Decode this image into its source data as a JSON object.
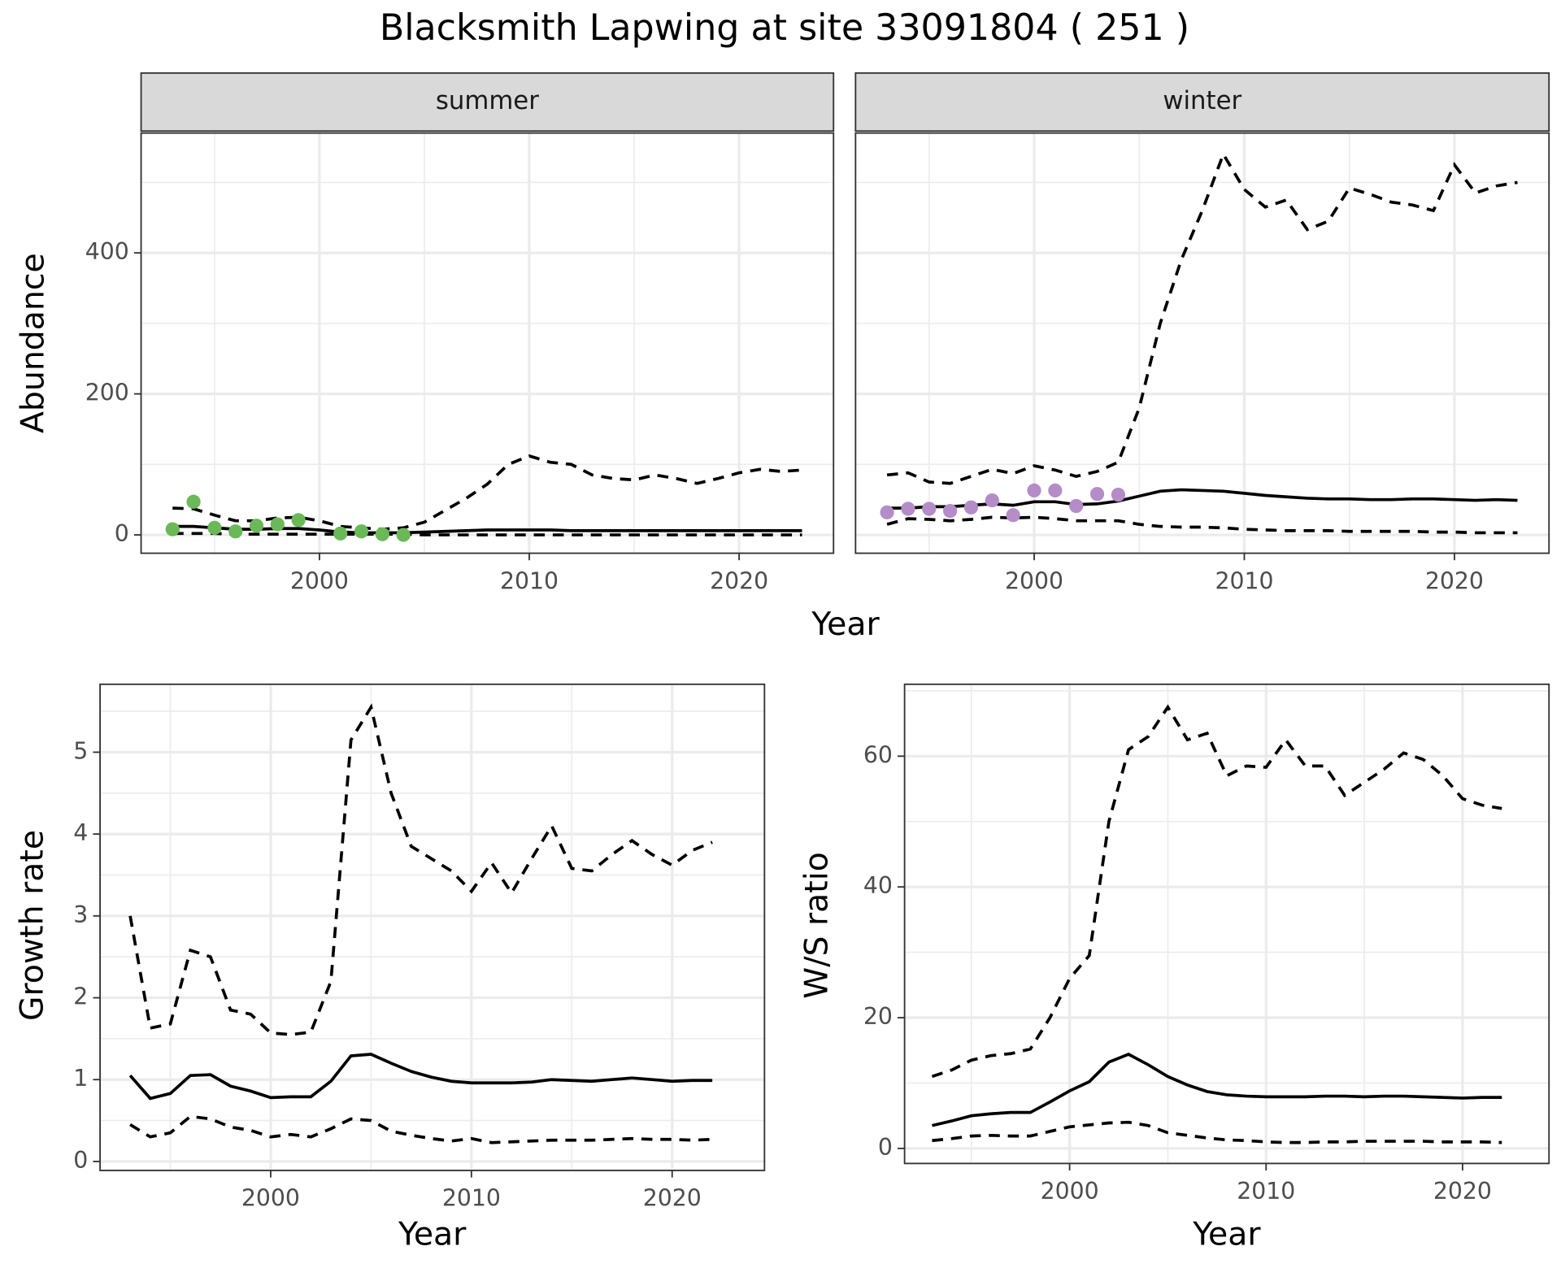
{
  "title": "Blacksmith Lapwing at site 33091804 ( 251 )",
  "chart_data": [
    {
      "type": "line",
      "facet": "summer",
      "ylabel": "Abundance",
      "xlabel": "Year",
      "x": [
        1993,
        1994,
        1995,
        1996,
        1997,
        1998,
        1999,
        2000,
        2001,
        2002,
        2003,
        2004,
        2005,
        2006,
        2007,
        2008,
        2009,
        2010,
        2011,
        2012,
        2013,
        2014,
        2015,
        2016,
        2017,
        2018,
        2019,
        2020,
        2021,
        2022,
        2023
      ],
      "series": [
        {
          "color": "#000000",
          "dashed": true,
          "values": [
            38,
            37,
            28,
            20,
            20,
            24,
            25,
            20,
            12,
            10,
            8,
            10,
            18,
            35,
            52,
            72,
            100,
            112,
            103,
            100,
            85,
            80,
            78,
            85,
            80,
            73,
            80,
            88,
            93,
            90,
            92
          ]
        },
        {
          "color": "#000000",
          "dashed": false,
          "values": [
            12,
            12,
            10,
            8,
            8,
            9,
            9,
            7,
            4,
            3,
            3,
            3,
            4,
            5,
            6,
            7,
            7,
            7,
            7,
            6,
            6,
            6,
            6,
            6,
            6,
            6,
            6,
            6,
            6,
            6,
            6
          ]
        },
        {
          "color": "#000000",
          "dashed": true,
          "values": [
            2,
            2,
            2,
            1,
            1,
            1,
            1,
            1,
            1,
            1,
            1,
            1,
            0,
            0,
            0,
            0,
            0,
            0,
            0,
            0,
            0,
            0,
            0,
            0,
            0,
            0,
            0,
            0,
            0,
            0,
            0
          ]
        }
      ],
      "points": {
        "color": "#6ab857",
        "x": [
          1993,
          1994,
          1995,
          1996,
          1997,
          1998,
          1999,
          2001,
          2002,
          2003,
          2004
        ],
        "values": [
          8,
          47,
          10,
          5,
          13,
          15,
          21,
          2,
          5,
          1,
          0
        ]
      },
      "xlim": [
        1991.5,
        2024.5
      ],
      "ylim": [
        -26,
        570
      ],
      "xticks": [
        2000,
        2010,
        2020
      ],
      "xminor": [
        1995,
        2005,
        2015
      ],
      "yticks": [
        0,
        200,
        400
      ],
      "yminor": [
        100,
        300,
        500
      ],
      "grid": true
    },
    {
      "type": "line",
      "facet": "winter",
      "x": [
        1993,
        1994,
        1995,
        1996,
        1997,
        1998,
        1999,
        2000,
        2001,
        2002,
        2003,
        2004,
        2005,
        2006,
        2007,
        2008,
        2009,
        2010,
        2011,
        2012,
        2013,
        2014,
        2015,
        2016,
        2017,
        2018,
        2019,
        2020,
        2021,
        2022,
        2023
      ],
      "series": [
        {
          "color": "#000000",
          "dashed": true,
          "values": [
            85,
            88,
            75,
            73,
            83,
            93,
            87,
            98,
            92,
            83,
            90,
            103,
            180,
            300,
            390,
            460,
            540,
            490,
            465,
            475,
            433,
            445,
            492,
            483,
            472,
            468,
            460,
            525,
            485,
            495,
            500
          ]
        },
        {
          "color": "#000000",
          "dashed": false,
          "values": [
            38,
            38,
            40,
            40,
            42,
            44,
            42,
            47,
            47,
            43,
            44,
            48,
            55,
            62,
            64,
            63,
            62,
            59,
            56,
            54,
            52,
            51,
            51,
            50,
            50,
            51,
            51,
            50,
            49,
            50,
            49
          ]
        },
        {
          "color": "#000000",
          "dashed": true,
          "values": [
            15,
            23,
            22,
            20,
            22,
            25,
            24,
            25,
            23,
            20,
            20,
            20,
            15,
            12,
            11,
            11,
            10,
            8,
            7,
            6,
            6,
            6,
            5,
            5,
            5,
            5,
            4,
            4,
            3,
            3,
            3
          ]
        }
      ],
      "points": {
        "color": "#b48cc8",
        "x": [
          1993,
          1994,
          1995,
          1996,
          1997,
          1998,
          1999,
          2000,
          2001,
          2002,
          2003,
          2004
        ],
        "values": [
          32,
          37,
          37,
          34,
          39,
          49,
          28,
          63,
          63,
          41,
          58,
          57
        ]
      },
      "xlim": [
        1991.5,
        2024.5
      ],
      "ylim": [
        -26,
        570
      ],
      "xticks": [
        2000,
        2010,
        2020
      ],
      "xminor": [
        1995,
        2005,
        2015
      ],
      "yminor": [
        100,
        300,
        500
      ],
      "yticks_shared": [
        0,
        200,
        400
      ],
      "grid": true
    },
    {
      "type": "line",
      "ylabel": "Growth rate",
      "xlabel": "Year",
      "x": [
        1993,
        1994,
        1995,
        1996,
        1997,
        1998,
        1999,
        2000,
        2001,
        2002,
        2003,
        2004,
        2005,
        2006,
        2007,
        2008,
        2009,
        2010,
        2011,
        2012,
        2013,
        2014,
        2015,
        2016,
        2017,
        2018,
        2019,
        2020,
        2021,
        2022
      ],
      "series": [
        {
          "color": "#000000",
          "dashed": true,
          "values": [
            3.0,
            1.63,
            1.68,
            2.58,
            2.5,
            1.85,
            1.8,
            1.57,
            1.55,
            1.58,
            2.2,
            5.15,
            5.55,
            4.5,
            3.85,
            3.7,
            3.55,
            3.3,
            3.65,
            3.28,
            3.7,
            4.1,
            3.58,
            3.55,
            3.75,
            3.92,
            3.75,
            3.62,
            3.8,
            3.9
          ]
        },
        {
          "color": "#000000",
          "dashed": false,
          "values": [
            1.05,
            0.77,
            0.83,
            1.05,
            1.06,
            0.92,
            0.86,
            0.78,
            0.79,
            0.79,
            0.98,
            1.29,
            1.31,
            1.2,
            1.1,
            1.03,
            0.98,
            0.96,
            0.96,
            0.96,
            0.97,
            1.0,
            0.99,
            0.98,
            1.0,
            1.02,
            1.0,
            0.98,
            0.99,
            0.99
          ]
        },
        {
          "color": "#000000",
          "dashed": true,
          "values": [
            0.45,
            0.3,
            0.35,
            0.55,
            0.52,
            0.42,
            0.38,
            0.3,
            0.33,
            0.3,
            0.4,
            0.52,
            0.5,
            0.37,
            0.32,
            0.28,
            0.25,
            0.28,
            0.23,
            0.24,
            0.25,
            0.26,
            0.26,
            0.26,
            0.27,
            0.28,
            0.27,
            0.27,
            0.26,
            0.27
          ]
        }
      ],
      "xlim": [
        1991.5,
        2024.6
      ],
      "ylim": [
        -0.11,
        5.83
      ],
      "xticks": [
        2000,
        2010,
        2020
      ],
      "xminor": [
        1995,
        2005,
        2015
      ],
      "yticks": [
        0,
        1,
        2,
        3,
        4,
        5
      ],
      "yminor": [
        0.5,
        1.5,
        2.5,
        3.5,
        4.5,
        5.5
      ],
      "grid": true
    },
    {
      "type": "line",
      "ylabel": "W/S ratio",
      "xlabel": "Year",
      "x": [
        1993,
        1994,
        1995,
        1996,
        1997,
        1998,
        1999,
        2000,
        2001,
        2002,
        2003,
        2004,
        2005,
        2006,
        2007,
        2008,
        2009,
        2010,
        2011,
        2012,
        2013,
        2014,
        2015,
        2016,
        2017,
        2018,
        2019,
        2020,
        2021,
        2022
      ],
      "series": [
        {
          "color": "#000000",
          "dashed": true,
          "values": [
            11,
            12,
            13.5,
            14.2,
            14.5,
            15.2,
            20,
            26,
            29.5,
            50,
            61,
            63,
            67.5,
            62.5,
            63.5,
            57,
            58.5,
            58.3,
            62.5,
            58.5,
            58.5,
            54,
            56,
            58,
            60.5,
            59.5,
            57,
            53.5,
            52.5,
            52
          ]
        },
        {
          "color": "#000000",
          "dashed": false,
          "values": [
            3.5,
            4.2,
            5,
            5.3,
            5.5,
            5.5,
            7.1,
            8.8,
            10.2,
            13.2,
            14.4,
            12.8,
            11,
            9.7,
            8.7,
            8.2,
            8,
            7.9,
            7.9,
            7.9,
            8,
            8,
            7.9,
            8,
            8,
            7.9,
            7.8,
            7.7,
            7.8,
            7.8
          ]
        },
        {
          "color": "#000000",
          "dashed": true,
          "values": [
            1.2,
            1.5,
            1.9,
            2,
            1.9,
            1.9,
            2.6,
            3.3,
            3.6,
            3.9,
            4,
            3.5,
            2.4,
            2,
            1.6,
            1.3,
            1.2,
            1,
            0.9,
            0.9,
            1,
            1,
            1.1,
            1.1,
            1.1,
            1.1,
            1,
            1,
            1,
            0.9
          ]
        }
      ],
      "xlim": [
        1991.6,
        2024.4
      ],
      "ylim": [
        -2.3,
        71
      ],
      "xticks": [
        2000,
        2010,
        2020
      ],
      "xminor": [
        1995,
        2005,
        2015
      ],
      "yticks": [
        0,
        20,
        40,
        60
      ],
      "yminor": [
        10,
        30,
        50,
        70
      ],
      "grid": true
    }
  ]
}
